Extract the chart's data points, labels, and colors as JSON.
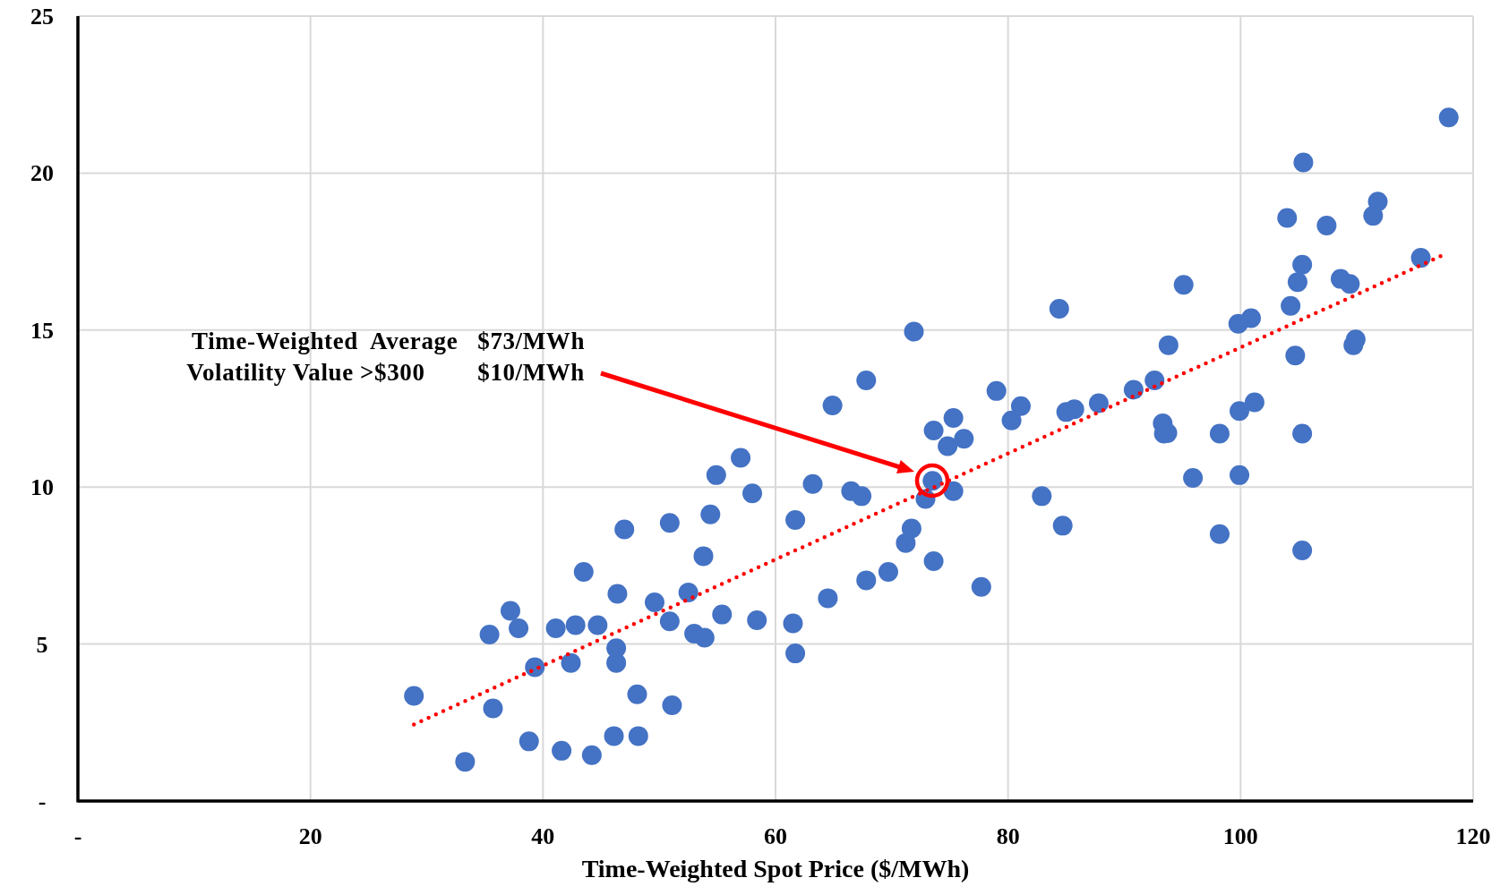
{
  "chart_data": {
    "type": "scatter",
    "xlabel": "Time-Weighted Spot Price ($/MWh)",
    "xlim": [
      0,
      120
    ],
    "ylim": [
      0,
      25
    ],
    "xticks": [
      {
        "value": 0,
        "label": "-"
      },
      20,
      40,
      60,
      80,
      100,
      120
    ],
    "yticks": [
      {
        "value": 0,
        "label": "-"
      },
      5,
      10,
      15,
      20,
      25
    ],
    "grid": true,
    "annotations": [
      "Time-Weighted  Average   $73/MWh",
      "Volatility Value >$300        $10/MWh"
    ],
    "series": [
      {
        "color": "#4472c4",
        "marker": "circle",
        "x": [
          28.9,
          33.3,
          35.4,
          35.7,
          37.2,
          37.9,
          38.8,
          39.3,
          41.1,
          41.6,
          42.4,
          42.8,
          43.5,
          44.2,
          44.7,
          46.1,
          46.3,
          46.3,
          46.4,
          47.0,
          48.1,
          48.2,
          49.6,
          50.9,
          50.9,
          51.1,
          52.5,
          53.0,
          53.8,
          53.9,
          54.4,
          54.9,
          55.4,
          57.0,
          58.0,
          58.4,
          61.5,
          61.7,
          61.7,
          63.2,
          64.5,
          64.9,
          66.5,
          67.4,
          67.8,
          67.8,
          69.7,
          71.2,
          71.7,
          71.9,
          72.9,
          73.5,
          73.6,
          73.6,
          74.8,
          75.3,
          75.3,
          76.2,
          77.7,
          79.0,
          80.3,
          81.1,
          82.9,
          84.4,
          84.7,
          85.0,
          85.7,
          87.8,
          90.8,
          92.6,
          93.3,
          93.4,
          93.7,
          93.8,
          95.1,
          95.9,
          98.2,
          98.2,
          99.8,
          99.9,
          99.9,
          100.9,
          101.2,
          104.0,
          104.3,
          104.7,
          104.9,
          105.3,
          105.3,
          105.3,
          105.4,
          107.4,
          108.6,
          109.4,
          109.7,
          109.9,
          111.4,
          111.8,
          115.5,
          117.9
        ],
        "values": [
          3.35,
          1.25,
          5.3,
          2.95,
          6.06,
          5.5,
          1.9,
          4.26,
          5.5,
          1.6,
          4.4,
          5.6,
          7.3,
          1.46,
          5.6,
          2.07,
          4.87,
          4.4,
          6.6,
          8.65,
          3.4,
          2.07,
          6.33,
          8.86,
          5.72,
          3.05,
          6.64,
          5.33,
          7.8,
          5.2,
          9.13,
          10.38,
          5.94,
          10.93,
          9.8,
          5.76,
          5.66,
          4.7,
          8.95,
          10.1,
          6.46,
          12.6,
          9.87,
          9.71,
          7.03,
          13.4,
          7.3,
          8.22,
          8.68,
          14.95,
          9.62,
          10.2,
          11.8,
          7.64,
          11.3,
          12.2,
          9.87,
          11.54,
          6.82,
          13.06,
          12.12,
          12.58,
          9.71,
          15.68,
          8.77,
          12.39,
          12.48,
          12.67,
          13.1,
          13.4,
          12.03,
          11.7,
          11.72,
          14.52,
          16.44,
          10.29,
          8.5,
          11.7,
          15.2,
          12.42,
          10.38,
          15.38,
          12.7,
          18.57,
          15.77,
          14.19,
          16.53,
          11.7,
          7.98,
          17.08,
          20.34,
          18.33,
          16.63,
          16.47,
          14.52,
          14.7,
          18.64,
          19.09,
          17.3,
          21.77
        ]
      },
      {
        "type": "line",
        "color": "#ff0000",
        "line_style": "dotted",
        "marker": "none",
        "x": [
          28.9,
          117.6
        ],
        "values": [
          2.44,
          17.42
        ]
      }
    ]
  }
}
